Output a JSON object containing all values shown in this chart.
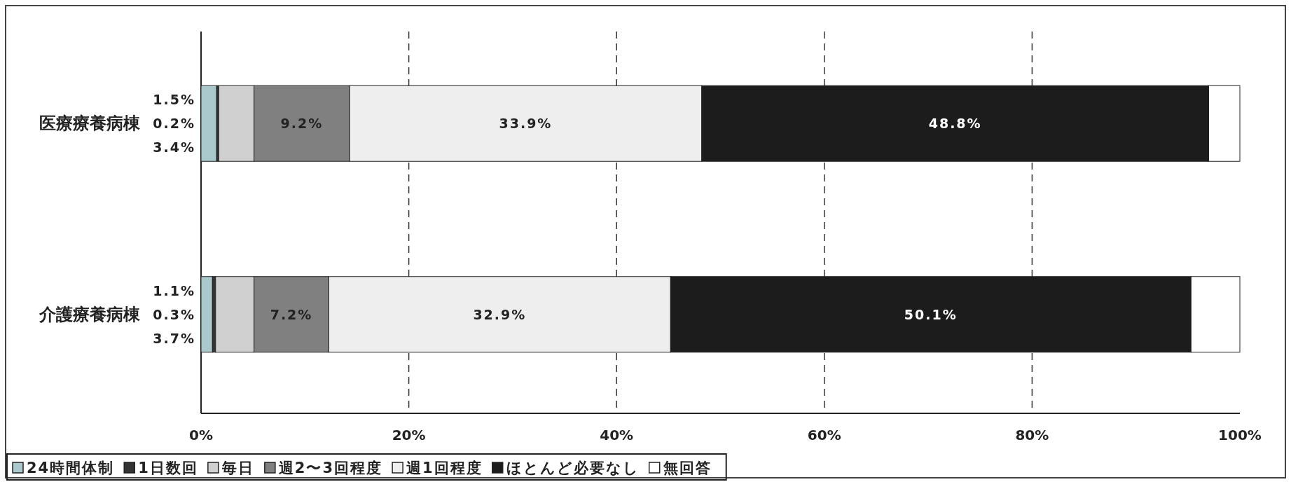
{
  "chart_data": {
    "type": "bar",
    "orientation": "horizontal",
    "stacked": true,
    "categories": [
      "医療療養病棟",
      "介護療養病棟"
    ],
    "xlim": [
      0,
      100
    ],
    "xticks": [
      {
        "value": 0,
        "label": "0%"
      },
      {
        "value": 20,
        "label": "20%"
      },
      {
        "value": 40,
        "label": "40%"
      },
      {
        "value": 60,
        "label": "60%"
      },
      {
        "value": 80,
        "label": "80%"
      },
      {
        "value": 100,
        "label": "100%"
      }
    ],
    "grid": "x",
    "legend": "bottom",
    "series": [
      {
        "name": "24時間体制",
        "color": "#a9c9cc",
        "values": [
          1.5,
          1.1
        ],
        "value_labels": [
          "1.5%",
          "1.1%"
        ]
      },
      {
        "name": "1日数回",
        "color": "#333333",
        "values": [
          0.2,
          0.3
        ],
        "value_labels": [
          "0.2%",
          "0.3%"
        ]
      },
      {
        "name": "毎日",
        "color": "#d0d0d0",
        "values": [
          3.4,
          3.7
        ],
        "value_labels": [
          "3.4%",
          "3.7%"
        ]
      },
      {
        "name": "週2〜3回程度",
        "color": "#808080",
        "values": [
          9.2,
          7.2
        ],
        "value_labels": [
          "9.2%",
          "7.2%"
        ]
      },
      {
        "name": "週1回程度",
        "color": "#eeeeee",
        "values": [
          33.9,
          32.9
        ],
        "value_labels": [
          "33.9%",
          "32.9%"
        ]
      },
      {
        "name": "ほとんど必要なし",
        "color": "#1c1c1c",
        "values": [
          48.8,
          50.1
        ],
        "value_labels": [
          "48.8%",
          "50.1%"
        ]
      },
      {
        "name": "無回答",
        "color": "#ffffff",
        "values": [
          3.0,
          4.7
        ],
        "value_labels": [
          null,
          null
        ]
      }
    ]
  }
}
